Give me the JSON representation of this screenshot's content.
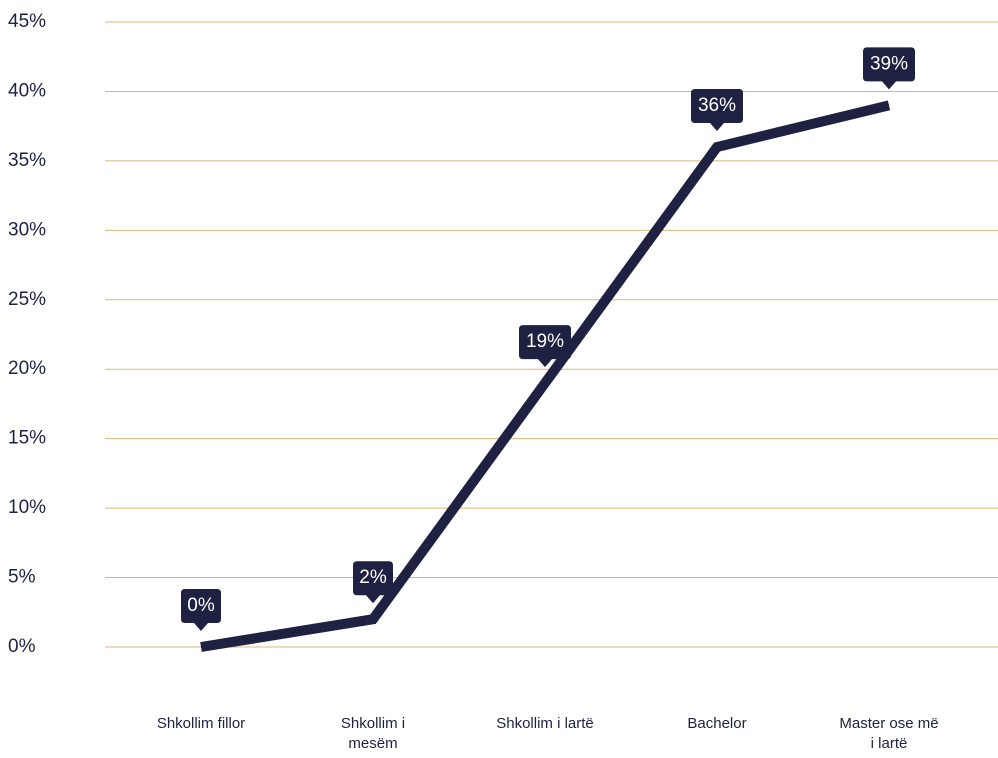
{
  "chart_data": {
    "type": "line",
    "categories": [
      "Shkollim fillor",
      "Shkollim i mesëm",
      "Shkollim i lartë",
      "Bachelor",
      "Master ose më i lartë"
    ],
    "series": [
      {
        "color": "#1e2141",
        "values": [
          0,
          2,
          19,
          36,
          39
        ],
        "value_labels": [
          "0%",
          "2%",
          "19%",
          "36%",
          "39%"
        ]
      }
    ],
    "ylim": [
      0,
      45
    ],
    "yticks": [
      {
        "value": 0,
        "label": "0%"
      },
      {
        "value": 5,
        "label": "5%"
      },
      {
        "value": 10,
        "label": "10%"
      },
      {
        "value": 15,
        "label": "15%"
      },
      {
        "value": 20,
        "label": "20%"
      },
      {
        "value": 25,
        "label": "25%"
      },
      {
        "value": 30,
        "label": "30%"
      },
      {
        "value": 35,
        "label": "35%"
      },
      {
        "value": 40,
        "label": "40%"
      },
      {
        "value": 45,
        "label": "45%"
      }
    ],
    "grid": true,
    "grid_color": "#d8b878"
  }
}
